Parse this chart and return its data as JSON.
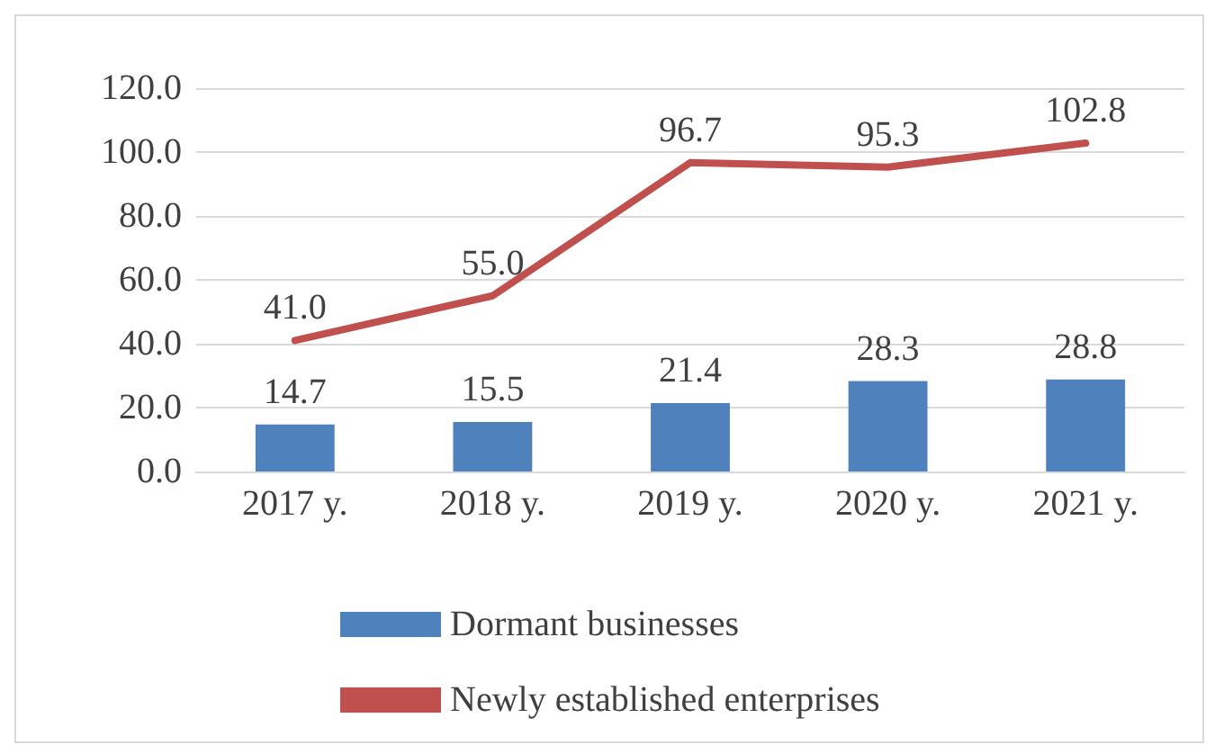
{
  "chart_data": {
    "type": "bar",
    "categories": [
      "2017 y.",
      "2018 y.",
      "2019 y.",
      "2020 y.",
      "2021 y."
    ],
    "series": [
      {
        "name": "Dormant businesses",
        "color": "#4f81bd",
        "values": [
          14.7,
          15.5,
          21.4,
          28.3,
          28.8
        ],
        "value_labels": [
          "14.7",
          "15.5",
          "21.4",
          "28.3",
          "28.8"
        ]
      },
      {
        "name": "Newly established enterprises",
        "type": "line",
        "color": "#c0504d",
        "values": [
          41.0,
          55.0,
          96.7,
          95.3,
          102.8
        ],
        "value_labels": [
          "41.0",
          "55.0",
          "96.7",
          "95.3",
          "102.8"
        ]
      }
    ],
    "ylim": [
      0,
      120
    ],
    "yticks": [
      {
        "value": 0,
        "label": "0.0"
      },
      {
        "value": 20,
        "label": "20.0"
      },
      {
        "value": 40,
        "label": "40.0"
      },
      {
        "value": 60,
        "label": "60.0"
      },
      {
        "value": 80,
        "label": "80.0"
      },
      {
        "value": 100,
        "label": "100.0"
      },
      {
        "value": 120,
        "label": "120.0"
      }
    ],
    "grid": "y",
    "legend": "bottom",
    "marker": "none",
    "line_style": "solid"
  }
}
